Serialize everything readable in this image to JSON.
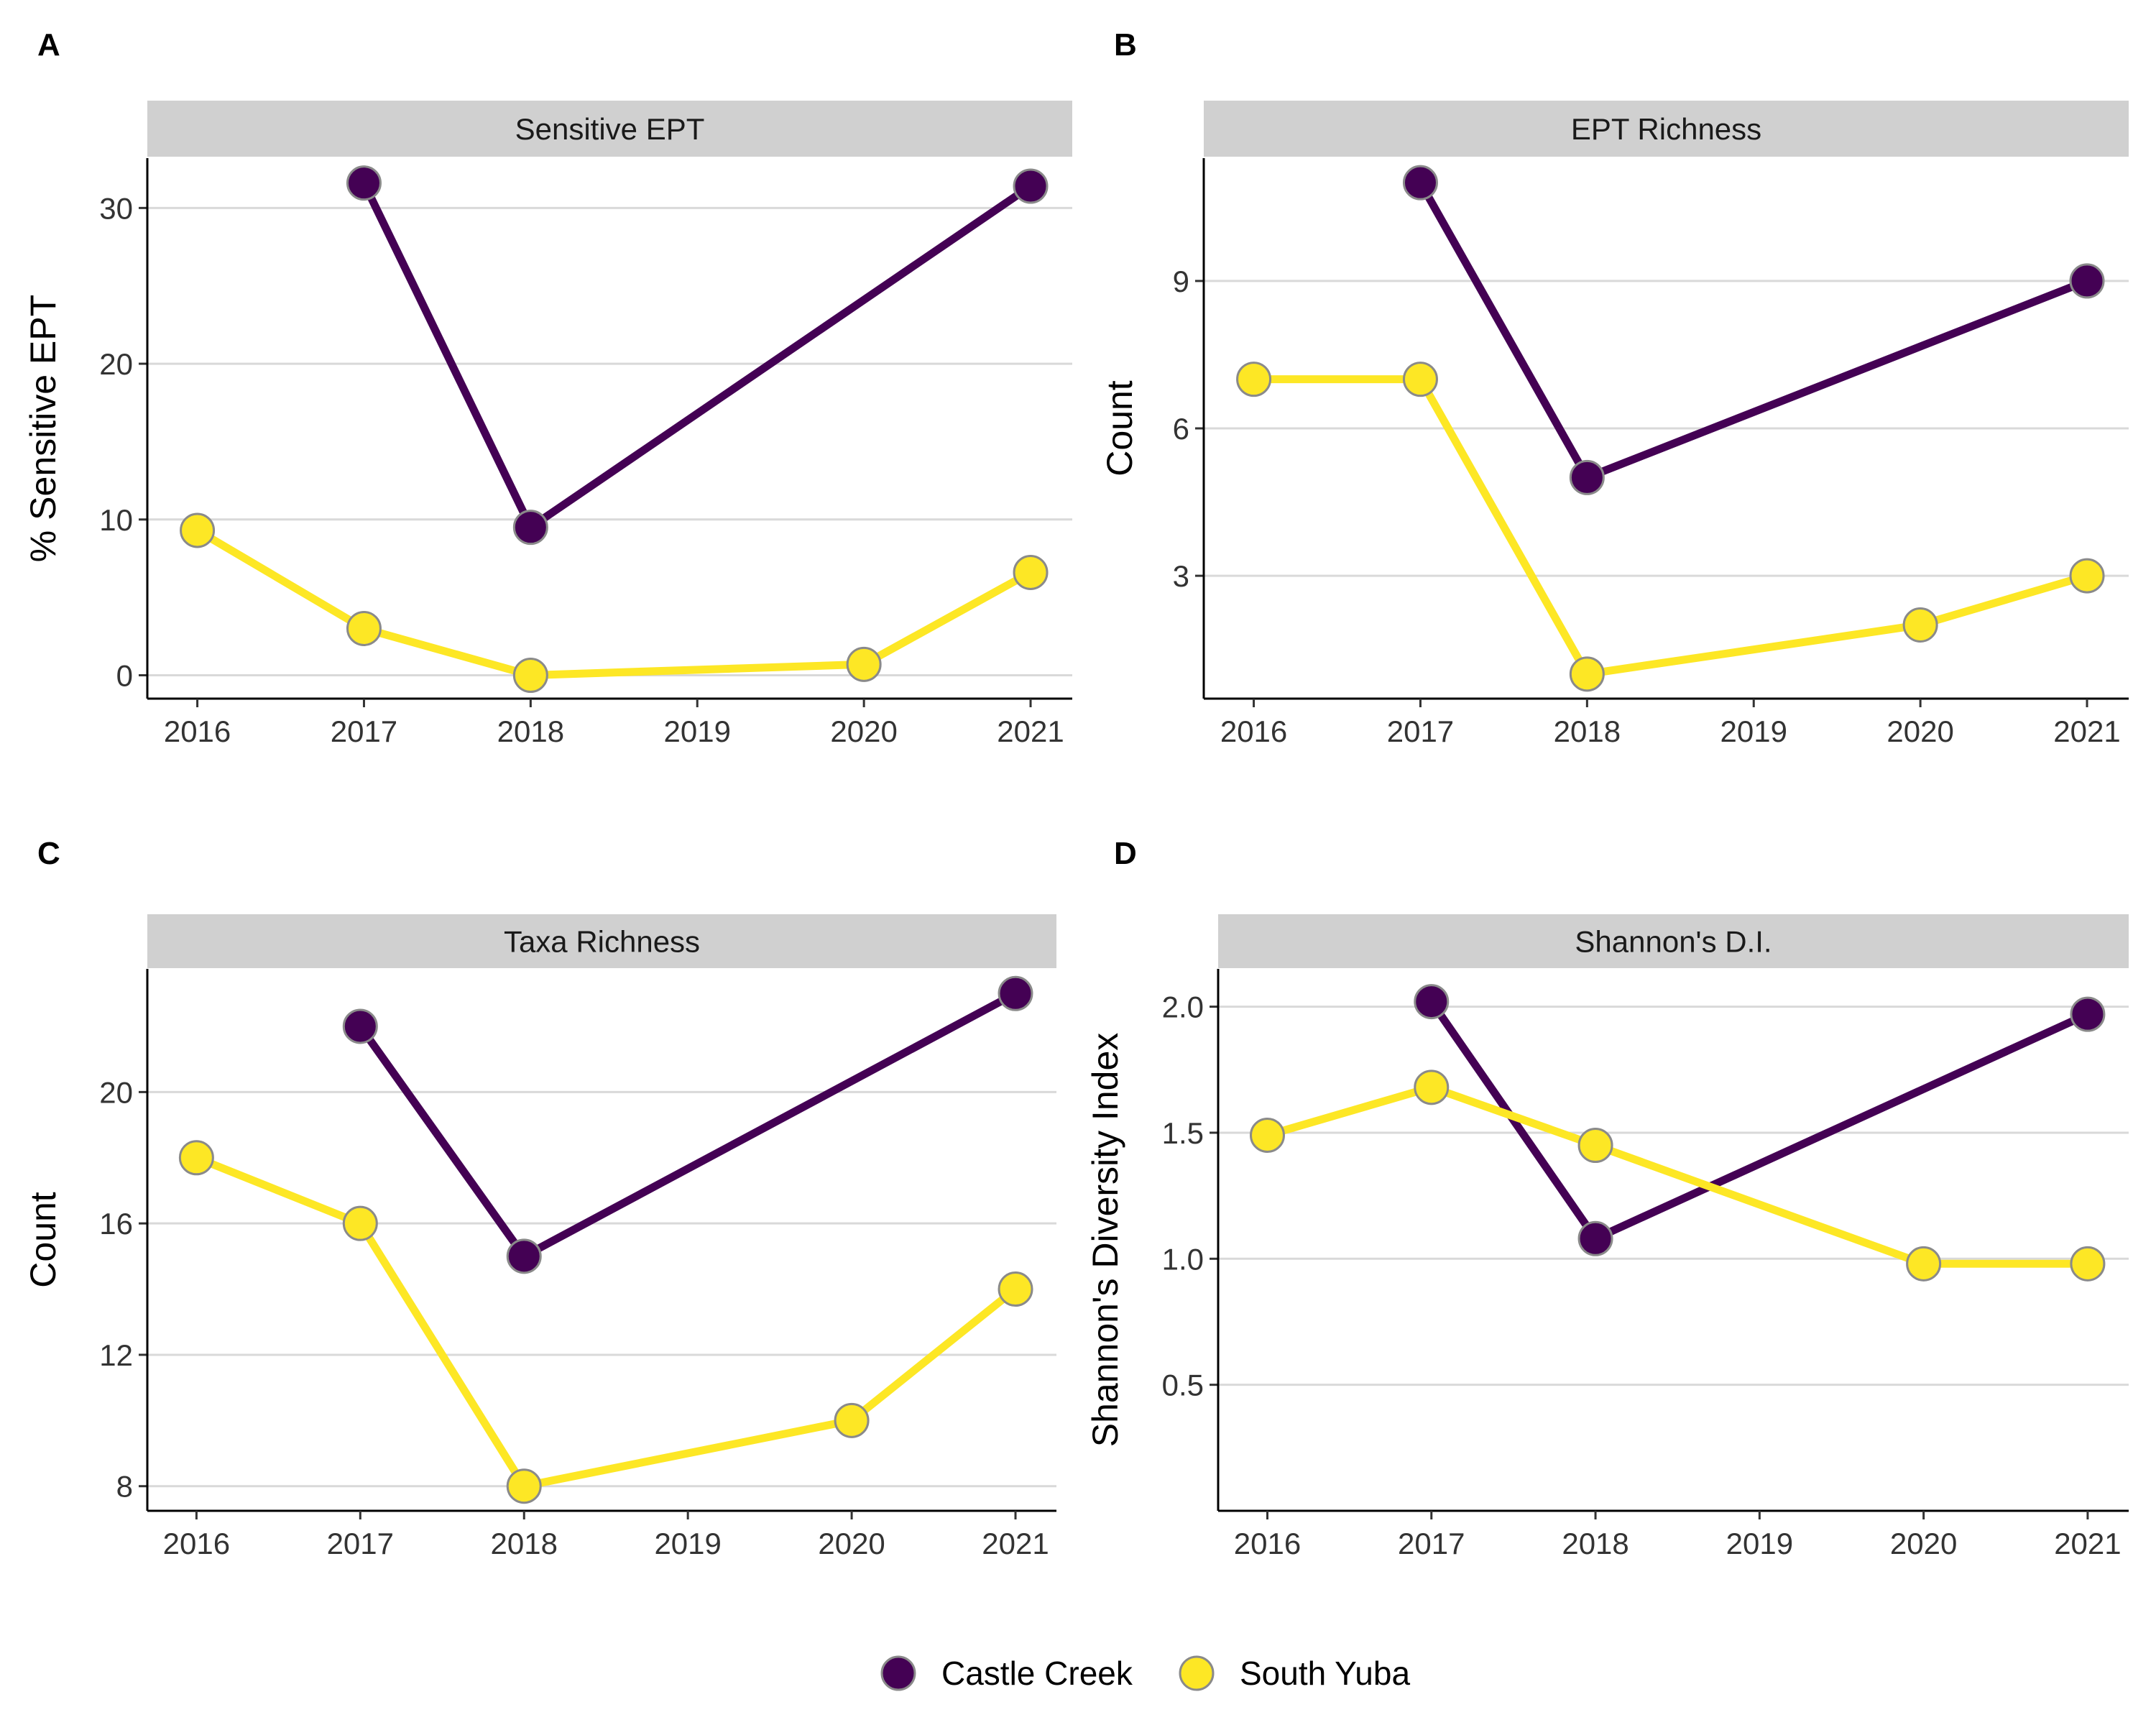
{
  "legend": {
    "position": "bottom",
    "items": [
      {
        "label": "Castle Creek",
        "color": "#440154"
      },
      {
        "label": "South Yuba",
        "color": "#FDE725"
      }
    ]
  },
  "chart_data": [
    {
      "panel_label": "A",
      "type": "line",
      "title": "Sensitive EPT",
      "ylabel": "% Sensitive EPT",
      "xlabel": "",
      "x_ticks": [
        "2016",
        "2017",
        "2018",
        "2019",
        "2020",
        "2021"
      ],
      "y_ticks": [
        0,
        10,
        20,
        30
      ],
      "xlim": [
        2015.7,
        2021.25
      ],
      "ylim": [
        -1.5,
        33.2
      ],
      "grid": "horizontal",
      "series": [
        {
          "name": "Castle Creek",
          "color": "#440154",
          "x": [
            2017,
            2018,
            2021
          ],
          "y": [
            31.6,
            9.5,
            31.4
          ]
        },
        {
          "name": "South Yuba",
          "color": "#FDE725",
          "x": [
            2016,
            2017,
            2018,
            2020,
            2021
          ],
          "y": [
            9.3,
            3.0,
            0.0,
            0.7,
            6.6
          ]
        }
      ]
    },
    {
      "panel_label": "B",
      "type": "line",
      "title": "EPT Richness",
      "ylabel": "Count",
      "xlabel": "",
      "x_ticks": [
        "2016",
        "2017",
        "2018",
        "2019",
        "2020",
        "2021"
      ],
      "y_ticks": [
        3,
        6,
        9
      ],
      "xlim": [
        2015.7,
        2021.25
      ],
      "ylim": [
        0.5,
        11.5
      ],
      "grid": "horizontal",
      "series": [
        {
          "name": "Castle Creek",
          "color": "#440154",
          "x": [
            2017,
            2018,
            2021
          ],
          "y": [
            11,
            5,
            9
          ]
        },
        {
          "name": "South Yuba",
          "color": "#FDE725",
          "x": [
            2016,
            2017,
            2018,
            2020,
            2021
          ],
          "y": [
            7,
            7,
            1,
            2,
            3
          ]
        }
      ]
    },
    {
      "panel_label": "C",
      "type": "line",
      "title": "Taxa Richness",
      "ylabel": "Count",
      "xlabel": "",
      "x_ticks": [
        "2016",
        "2017",
        "2018",
        "2019",
        "2020",
        "2021"
      ],
      "y_ticks": [
        8,
        12,
        16,
        20
      ],
      "xlim": [
        2015.7,
        2021.25
      ],
      "ylim": [
        7.25,
        23.75
      ],
      "grid": "horizontal",
      "series": [
        {
          "name": "Castle Creek",
          "color": "#440154",
          "x": [
            2017,
            2018,
            2021
          ],
          "y": [
            22,
            15,
            23
          ]
        },
        {
          "name": "South Yuba",
          "color": "#FDE725",
          "x": [
            2016,
            2017,
            2018,
            2020,
            2021
          ],
          "y": [
            18,
            16,
            8,
            10,
            14
          ]
        }
      ]
    },
    {
      "panel_label": "D",
      "type": "line",
      "title": "Shannon's D.I.",
      "ylabel": "Shannon's Diversity Index",
      "xlabel": "",
      "x_ticks": [
        "2016",
        "2017",
        "2018",
        "2019",
        "2020",
        "2021"
      ],
      "y_ticks": [
        "0.5",
        "1.0",
        "1.5",
        "2.0"
      ],
      "xlim": [
        2015.7,
        2021.25
      ],
      "ylim": [
        0.0,
        2.15
      ],
      "grid": "horizontal",
      "series": [
        {
          "name": "Castle Creek",
          "color": "#440154",
          "x": [
            2017,
            2018,
            2021
          ],
          "y": [
            2.02,
            1.08,
            1.97
          ]
        },
        {
          "name": "South Yuba",
          "color": "#FDE725",
          "x": [
            2016,
            2017,
            2018,
            2020,
            2021
          ],
          "y": [
            1.49,
            1.68,
            1.45,
            0.98,
            0.98
          ]
        }
      ]
    }
  ]
}
